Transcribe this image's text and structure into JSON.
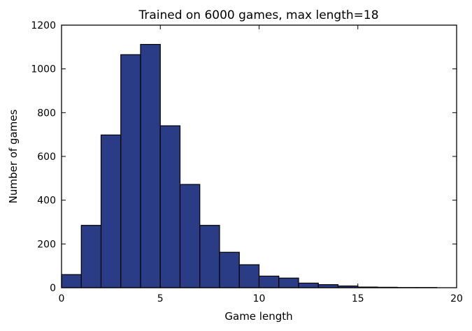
{
  "chart_data": {
    "type": "bar",
    "title": "Trained on 6000 games, max length=18",
    "xlabel": "Game length",
    "ylabel": "Number of games",
    "xlim": [
      0,
      20
    ],
    "ylim": [
      0,
      1200
    ],
    "xticks": [
      0,
      5,
      10,
      15,
      20
    ],
    "yticks": [
      0,
      200,
      400,
      600,
      800,
      1000,
      1200
    ],
    "bin_width": 1,
    "bins": [
      0,
      1,
      2,
      3,
      4,
      5,
      6,
      7,
      8,
      9,
      10,
      11,
      12,
      13,
      14,
      15,
      16,
      17,
      18,
      19
    ],
    "values": [
      60,
      285,
      698,
      1065,
      1112,
      740,
      472,
      285,
      162,
      105,
      53,
      44,
      21,
      14,
      8,
      3,
      2,
      1,
      1,
      0
    ],
    "bar_color": "#2b3c86",
    "grid": false,
    "legend": "none"
  }
}
